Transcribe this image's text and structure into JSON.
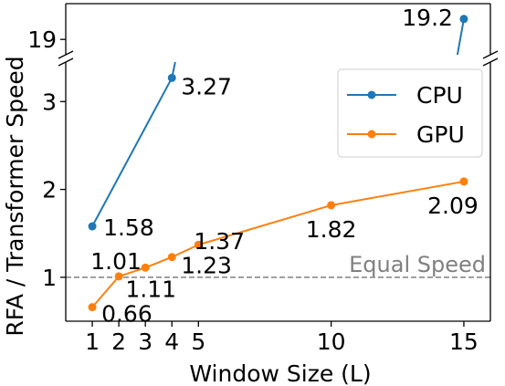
{
  "chart_data": {
    "type": "line",
    "xlabel": "Window Size (L)",
    "ylabel": "RFA / Transformer Speed",
    "x_ticks": [
      1,
      2,
      3,
      4,
      5,
      10,
      15
    ],
    "x_tick_labels": [
      "1",
      "2",
      "3",
      "4",
      "5",
      "10",
      "15"
    ],
    "lower_y_ticks": [
      1,
      2,
      3
    ],
    "lower_y_tick_labels": [
      "1",
      "2",
      "3"
    ],
    "upper_y_ticks": [
      19
    ],
    "upper_y_tick_labels": [
      "19"
    ],
    "xlim": [
      0.0,
      16.0
    ],
    "lower_ylim": [
      0.5,
      3.45
    ],
    "upper_ylim": [
      18.85,
      19.35
    ],
    "broken_y_axis": true,
    "reference_line": {
      "y": 1,
      "label": "Equal Speed",
      "style": "dashed",
      "color": "#808080"
    },
    "legend": {
      "position": "top-right"
    },
    "grid": false,
    "series": [
      {
        "name": "CPU",
        "color": "#1f77b4",
        "points": [
          {
            "x": 1,
            "y": 1.58,
            "label": "1.58"
          },
          {
            "x": 4,
            "y": 3.27,
            "label": "3.27"
          },
          {
            "x": 15,
            "y": 19.2,
            "label": "19.2"
          }
        ]
      },
      {
        "name": "GPU",
        "color": "#ff7f0e",
        "points": [
          {
            "x": 1,
            "y": 0.66,
            "label": "0.66"
          },
          {
            "x": 2,
            "y": 1.01,
            "label": "1.01"
          },
          {
            "x": 3,
            "y": 1.11,
            "label": "1.11"
          },
          {
            "x": 4,
            "y": 1.23,
            "label": "1.23"
          },
          {
            "x": 5,
            "y": 1.37,
            "label": "1.37"
          },
          {
            "x": 10,
            "y": 1.82,
            "label": "1.82"
          },
          {
            "x": 15,
            "y": 2.09,
            "label": "2.09"
          }
        ]
      }
    ]
  }
}
